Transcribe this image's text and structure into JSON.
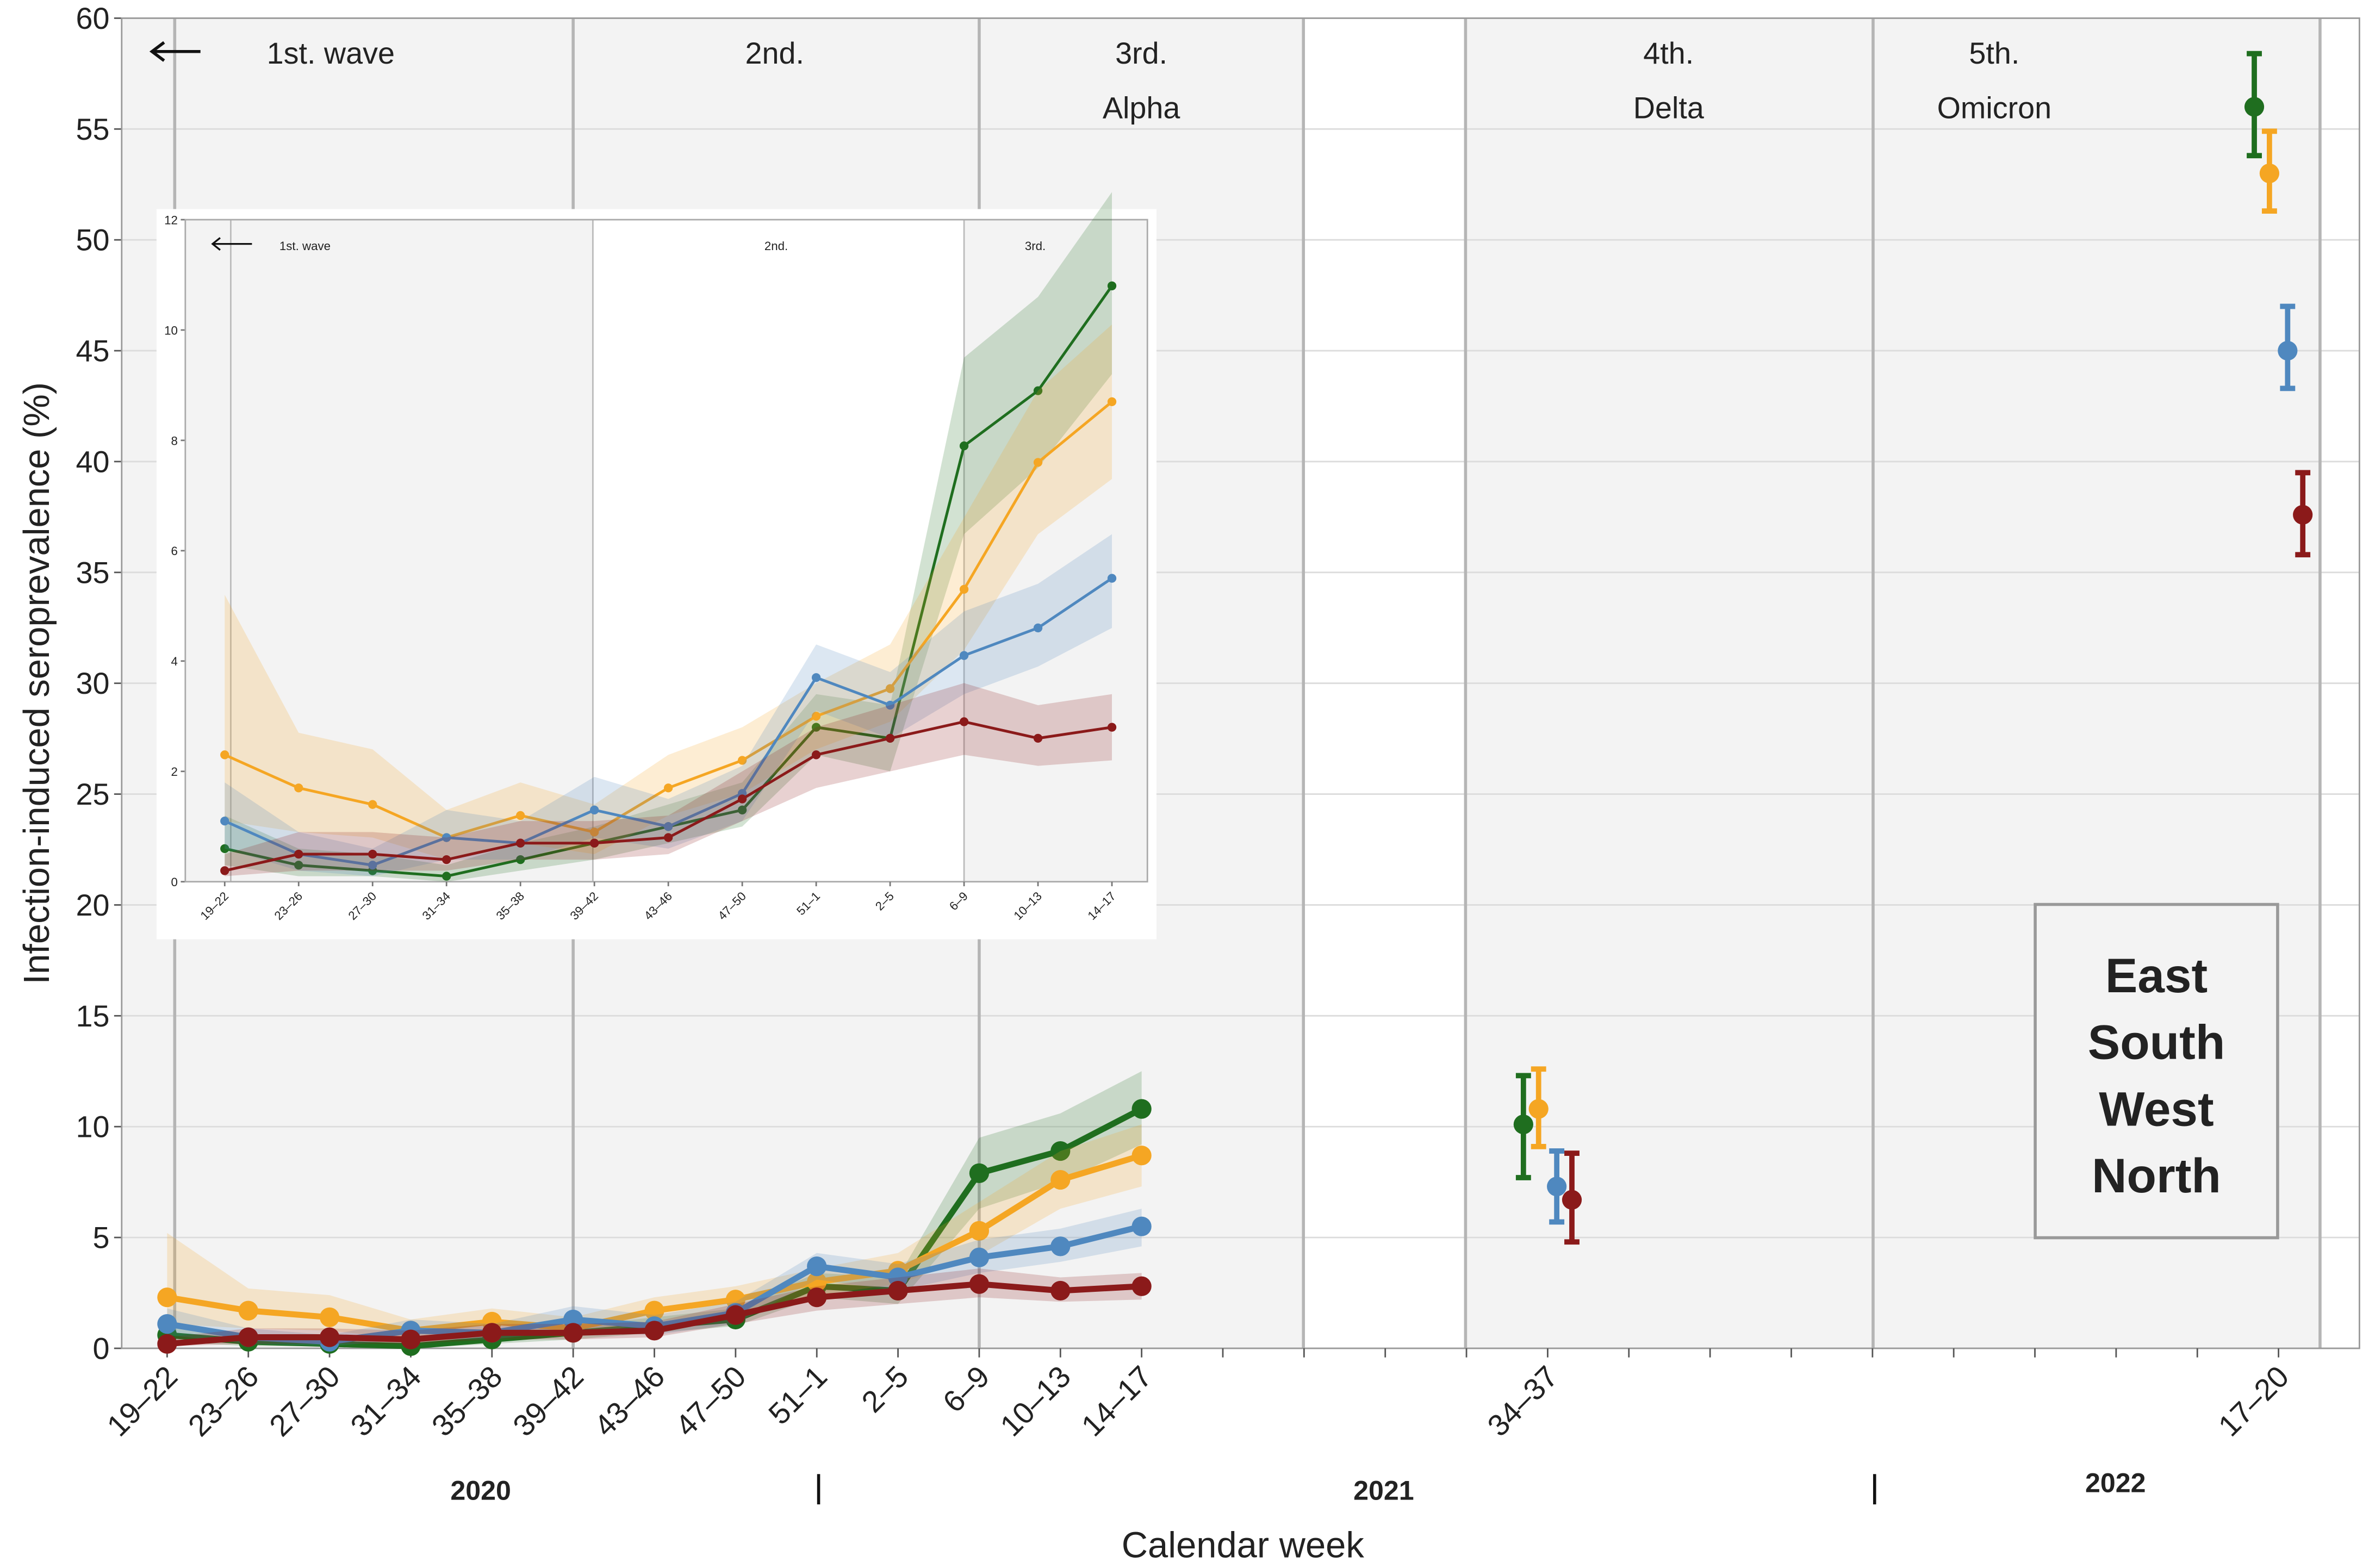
{
  "chart_data": {
    "type": "line",
    "xlabel": "Calendar week",
    "ylabel": "Infection-induced seroprevalence (%)",
    "categories": [
      "19–22",
      "23–26",
      "27–30",
      "31–34",
      "35–38",
      "39–42",
      "43–46",
      "47–50",
      "51–1",
      "2–5",
      "6–9",
      "10–13",
      "14–17",
      null,
      null,
      null,
      null,
      "34–37",
      null,
      null,
      null,
      null,
      null,
      null,
      null,
      null,
      "17–20"
    ],
    "ylim": [
      0,
      60
    ],
    "yticks": [
      0,
      5,
      10,
      15,
      20,
      25,
      30,
      35,
      40,
      45,
      50,
      55,
      60
    ],
    "grid": true,
    "legend": "lower right",
    "years": [
      "2020",
      "2021",
      "2022"
    ],
    "waves": [
      {
        "label": "1st. wave"
      },
      {
        "label": "2nd."
      },
      {
        "label": "3rd.",
        "variant": "Alpha"
      },
      {
        "label": "4th.",
        "variant": "Delta"
      },
      {
        "label": "5th.",
        "variant": "Omicron"
      }
    ],
    "series": [
      {
        "name": "East",
        "color": "#1f6e1f",
        "values": [
          0.6,
          0.3,
          0.2,
          0.1,
          0.4,
          0.7,
          1.0,
          1.3,
          2.8,
          2.6,
          7.9,
          8.9,
          10.8,
          null,
          null,
          null,
          null,
          10.1,
          null,
          null,
          null,
          null,
          null,
          null,
          null,
          null,
          56.0
        ],
        "lower": [
          0.3,
          0.1,
          0.1,
          0.0,
          0.2,
          0.4,
          0.7,
          1.0,
          2.3,
          2.0,
          6.3,
          7.5,
          9.2,
          null,
          null,
          null,
          null,
          7.7,
          null,
          null,
          null,
          null,
          null,
          null,
          null,
          null,
          53.8
        ],
        "upper": [
          1.2,
          0.6,
          0.5,
          0.3,
          0.7,
          1.0,
          1.4,
          1.8,
          3.4,
          3.2,
          9.5,
          10.6,
          12.5,
          null,
          null,
          null,
          null,
          12.3,
          null,
          null,
          null,
          null,
          null,
          null,
          null,
          null,
          58.4
        ]
      },
      {
        "name": "South",
        "color": "#f5a623",
        "values": [
          2.3,
          1.7,
          1.4,
          0.8,
          1.2,
          0.9,
          1.7,
          2.2,
          3.0,
          3.5,
          5.3,
          7.6,
          8.7,
          null,
          null,
          null,
          null,
          10.8,
          null,
          null,
          null,
          null,
          null,
          null,
          null,
          null,
          53.0
        ],
        "lower": [
          1.1,
          0.9,
          0.8,
          0.4,
          0.7,
          0.5,
          1.2,
          1.6,
          2.4,
          2.9,
          4.2,
          6.3,
          7.3,
          null,
          null,
          null,
          null,
          9.1,
          null,
          null,
          null,
          null,
          null,
          null,
          null,
          null,
          51.3
        ],
        "upper": [
          5.2,
          2.7,
          2.4,
          1.3,
          1.8,
          1.4,
          2.3,
          2.8,
          3.6,
          4.3,
          6.6,
          8.9,
          10.1,
          null,
          null,
          null,
          null,
          12.6,
          null,
          null,
          null,
          null,
          null,
          null,
          null,
          null,
          54.9
        ]
      },
      {
        "name": "West",
        "color": "#4f88bf",
        "values": [
          1.1,
          0.5,
          0.3,
          0.8,
          0.7,
          1.3,
          1.0,
          1.6,
          3.7,
          3.2,
          4.1,
          4.6,
          5.5,
          null,
          null,
          null,
          null,
          7.3,
          null,
          null,
          null,
          null,
          null,
          null,
          null,
          null,
          45.0
        ],
        "lower": [
          0.6,
          0.2,
          0.1,
          0.4,
          0.4,
          0.8,
          0.6,
          1.1,
          3.1,
          2.6,
          3.4,
          3.9,
          4.6,
          null,
          null,
          null,
          null,
          5.7,
          null,
          null,
          null,
          null,
          null,
          null,
          null,
          null,
          43.3
        ],
        "upper": [
          1.8,
          0.9,
          0.6,
          1.3,
          1.1,
          1.9,
          1.5,
          2.1,
          4.3,
          3.8,
          4.9,
          5.4,
          6.3,
          null,
          null,
          null,
          null,
          8.9,
          null,
          null,
          null,
          null,
          null,
          null,
          null,
          null,
          47.0
        ]
      },
      {
        "name": "North",
        "color": "#8b1a1a",
        "values": [
          0.2,
          0.5,
          0.5,
          0.4,
          0.7,
          0.7,
          0.8,
          1.5,
          2.3,
          2.6,
          2.9,
          2.6,
          2.8,
          null,
          null,
          null,
          null,
          6.7,
          null,
          null,
          null,
          null,
          null,
          null,
          null,
          null,
          37.6
        ],
        "lower": [
          0.1,
          0.2,
          0.2,
          0.2,
          0.4,
          0.4,
          0.5,
          1.1,
          1.7,
          2.0,
          2.3,
          2.1,
          2.2,
          null,
          null,
          null,
          null,
          4.8,
          null,
          null,
          null,
          null,
          null,
          null,
          null,
          null,
          35.8
        ],
        "upper": [
          0.5,
          0.9,
          0.9,
          0.8,
          1.1,
          1.1,
          1.2,
          2.0,
          2.8,
          3.2,
          3.6,
          3.2,
          3.4,
          null,
          null,
          null,
          null,
          8.8,
          null,
          null,
          null,
          null,
          null,
          null,
          null,
          null,
          39.5
        ]
      }
    ],
    "inset": {
      "ylim": [
        0,
        12
      ],
      "yticks": [
        0,
        2,
        4,
        6,
        8,
        10,
        12
      ],
      "waves": [
        "1st. wave",
        "2nd.",
        "3rd."
      ]
    }
  }
}
